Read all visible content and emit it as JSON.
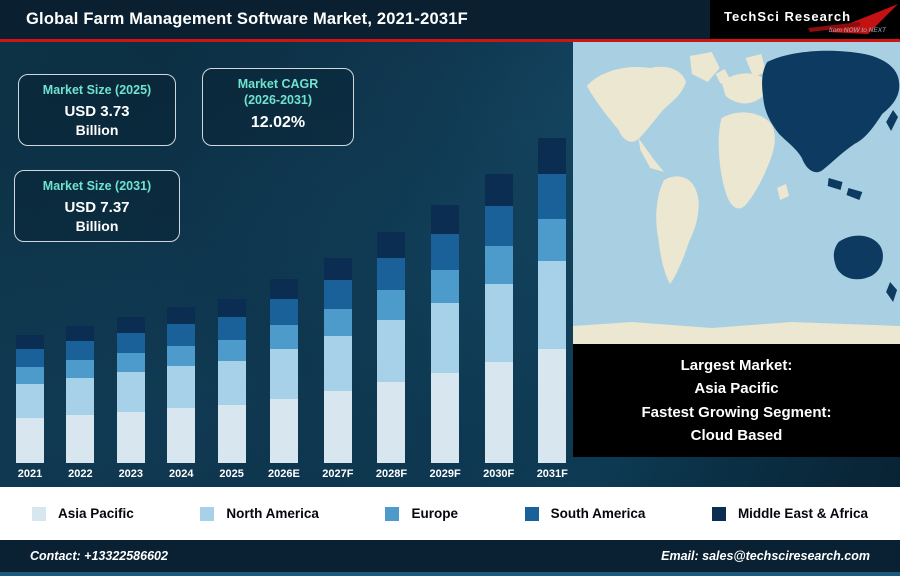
{
  "header": {
    "title": "Global Farm Management Software Market, 2021-2031F",
    "logo": {
      "name": "TechSci Research",
      "tagline": "from NOW to NEXT"
    }
  },
  "info_boxes": {
    "size_2025": {
      "label": "Market Size (2025)",
      "value": "USD 3.73",
      "unit": "Billion"
    },
    "cagr": {
      "label_line1": "Market CAGR",
      "label_line2": "(2026-2031)",
      "value": "12.02%"
    },
    "size_2031": {
      "label": "Market Size (2031)",
      "value": "USD 7.37",
      "unit": "Billion"
    }
  },
  "chart_data": {
    "type": "bar",
    "stacked": true,
    "title": "Global Farm Management Software Market, 2021-2031F",
    "unit": "USD Billion",
    "ylim": [
      0,
      8
    ],
    "grid": false,
    "legend_position": "bottom",
    "categories": [
      "2021",
      "2022",
      "2023",
      "2024",
      "2025",
      "2026E",
      "2027F",
      "2028F",
      "2029F",
      "2030F",
      "2031F"
    ],
    "totals": [
      2.9,
      3.1,
      3.32,
      3.55,
      3.73,
      4.18,
      4.68,
      5.24,
      5.87,
      6.58,
      7.37
    ],
    "series": [
      {
        "name": "Asia Pacific",
        "color": "#d8e6ef",
        "values": [
          1.02,
          1.09,
          1.16,
          1.24,
          1.31,
          1.46,
          1.64,
          1.83,
          2.05,
          2.3,
          2.58
        ]
      },
      {
        "name": "North America",
        "color": "#a6d1e8",
        "values": [
          0.78,
          0.84,
          0.9,
          0.96,
          1.01,
          1.13,
          1.26,
          1.41,
          1.58,
          1.78,
          1.99
        ]
      },
      {
        "name": "Europe",
        "color": "#4d9bca",
        "values": [
          0.38,
          0.4,
          0.43,
          0.46,
          0.48,
          0.54,
          0.61,
          0.68,
          0.76,
          0.86,
          0.96
        ]
      },
      {
        "name": "South America",
        "color": "#1a6099",
        "values": [
          0.41,
          0.43,
          0.46,
          0.5,
          0.52,
          0.59,
          0.66,
          0.73,
          0.82,
          0.92,
          1.03
        ]
      },
      {
        "name": "Middle East & Africa",
        "color": "#0b2d52",
        "values": [
          0.32,
          0.34,
          0.37,
          0.39,
          0.41,
          0.46,
          0.51,
          0.58,
          0.65,
          0.72,
          0.81
        ]
      }
    ]
  },
  "map": {
    "highlighted_region": "Asia Pacific",
    "ocean_color": "#a9cfe2",
    "land_color": "#ebe7d1",
    "highlight_color": "#0d3a60"
  },
  "callout": {
    "lines": [
      "Largest Market:",
      "Asia Pacific",
      "Fastest Growing Segment:",
      "Cloud Based"
    ]
  },
  "footer": {
    "contact": "Contact: +13322586602",
    "email": "Email: sales@techsciresearch.com"
  },
  "colors": {
    "accent_red": "#cf1414",
    "accent_teal": "#6fe3cf"
  }
}
